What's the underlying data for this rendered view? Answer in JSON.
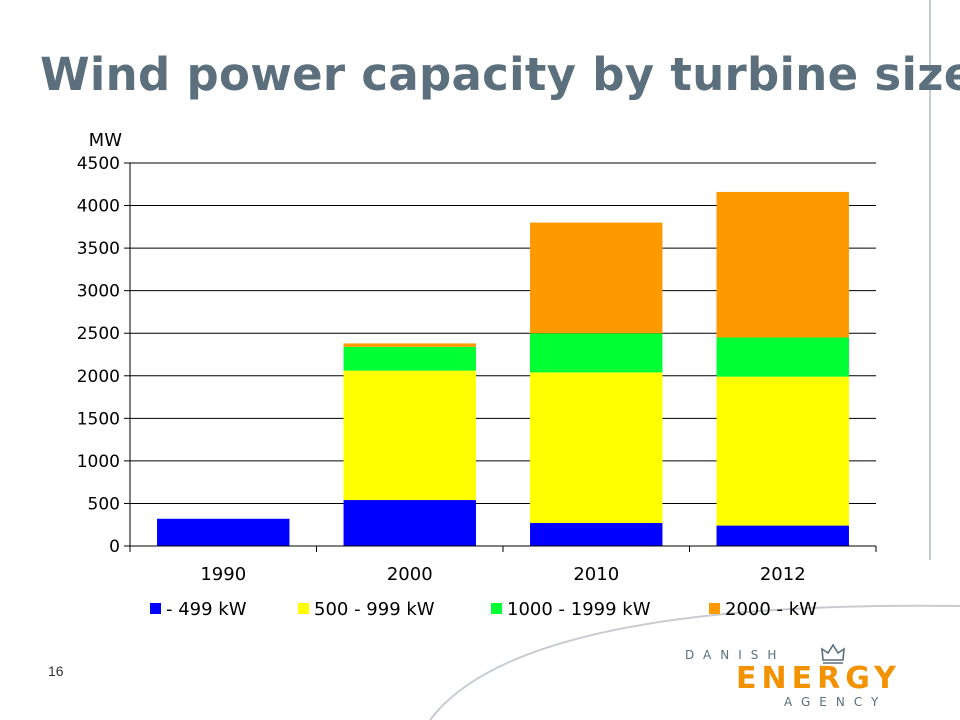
{
  "slide": {
    "title": "Wind power capacity by turbine size",
    "page_number": "16"
  },
  "logo": {
    "top_text": "DANISH",
    "main_text": "ENERGY",
    "bottom_text": "AGENCY",
    "colors": {
      "orange": "#f39200",
      "grey": "#5b6f7c"
    },
    "icon": "crown-icon"
  },
  "colors": {
    "title": "#5b6f7c",
    "decor_line": "#c6ccd2"
  },
  "chart_data": {
    "type": "bar",
    "stacked": true,
    "title": "",
    "xlabel": "",
    "ylabel": "MW",
    "categories": [
      "1990",
      "2000",
      "2010",
      "2012"
    ],
    "ylim": [
      0,
      4500
    ],
    "yticks": [
      0,
      500,
      1000,
      1500,
      2000,
      2500,
      3000,
      3500,
      4000,
      4500
    ],
    "grid": true,
    "legend": "bottom",
    "series": [
      {
        "name": "- 499 kW",
        "color": "#0000ff",
        "values": [
          320,
          540,
          270,
          240
        ]
      },
      {
        "name": "500 - 999 kW",
        "color": "#ffff00",
        "values": [
          0,
          1520,
          1770,
          1750
        ]
      },
      {
        "name": "1000 - 1999 kW",
        "color": "#00ff33",
        "values": [
          0,
          280,
          460,
          460
        ]
      },
      {
        "name": "2000 - kW",
        "color": "#ff9900",
        "values": [
          0,
          40,
          1300,
          1710
        ]
      }
    ]
  }
}
